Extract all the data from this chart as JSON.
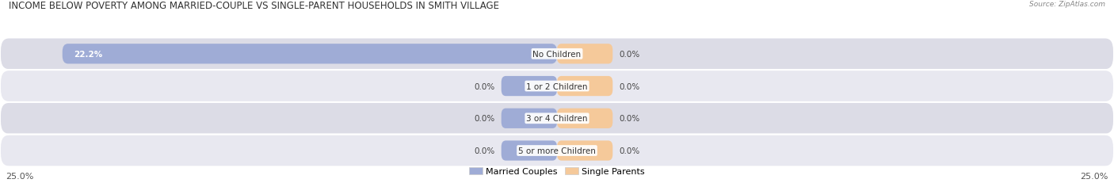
{
  "title": "INCOME BELOW POVERTY AMONG MARRIED-COUPLE VS SINGLE-PARENT HOUSEHOLDS IN SMITH VILLAGE",
  "source": "Source: ZipAtlas.com",
  "categories": [
    "No Children",
    "1 or 2 Children",
    "3 or 4 Children",
    "5 or more Children"
  ],
  "married_values": [
    22.2,
    0.0,
    0.0,
    0.0
  ],
  "single_values": [
    0.0,
    0.0,
    0.0,
    0.0
  ],
  "max_value": 25.0,
  "married_color": "#9facd6",
  "single_color": "#f5c99a",
  "row_bg_color_dark": "#dcdce6",
  "row_bg_color_light": "#e8e8f0",
  "outer_bg_color": "#f0f0f6",
  "title_fontsize": 8.5,
  "label_fontsize": 7.5,
  "value_fontsize": 7.5,
  "axis_label_fontsize": 8,
  "legend_fontsize": 8,
  "background_color": "#ffffff",
  "axis_label_left": "25.0%",
  "axis_label_right": "25.0%",
  "source_fontsize": 6.5,
  "small_bar_width": 2.5
}
